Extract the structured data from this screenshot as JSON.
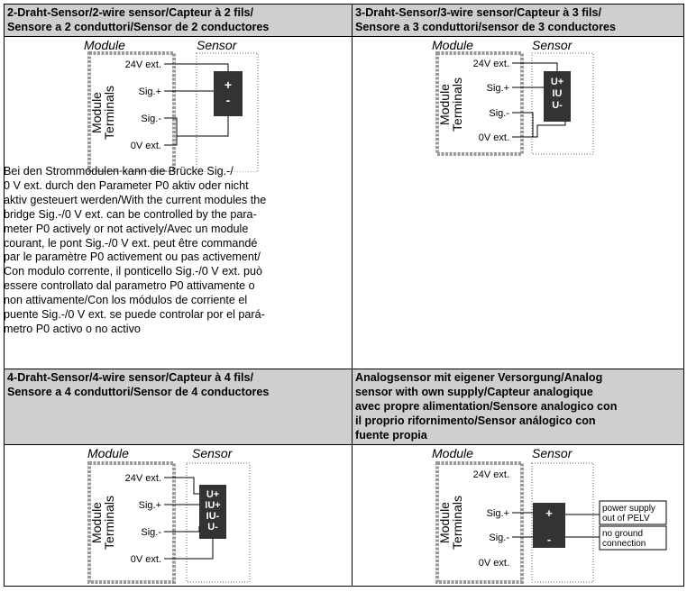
{
  "cells": {
    "two_wire": {
      "header_line1": "2-Draht-Sensor/2-wire sensor/Capteur à 2 fils/",
      "header_line2": "Sensore a 2 conduttori/Sensor de 2 conductores",
      "pins": [
        "+",
        "-"
      ]
    },
    "three_wire": {
      "header_line1": "3-Draht-Sensor/3-wire sensor/Capteur à 3 fils/",
      "header_line2": "Sensore a 3 conduttori/sensor de 3 conductores",
      "pins": [
        "U+",
        "IU",
        "U-"
      ]
    },
    "four_wire": {
      "header_line1": "4-Draht-Sensor/4-wire sensor/Capteur à 4 fils/",
      "header_line2": "Sensore a 4 conduttori/Sensor de 4 conductores",
      "pins": [
        "U+",
        "IU+",
        "IU-",
        "U-"
      ]
    },
    "own_supply": {
      "header_lines": [
        "Analogsensor mit eigener Versorgung/Analog",
        "sensor with own supply/Capteur analogique",
        "avec propre alimentation/Sensore analogico con",
        "il proprio rifornimento/Sensor análogico con",
        "fuente propia"
      ],
      "pins": [
        "+",
        "-"
      ],
      "note_power": [
        "power supply",
        "out of PELV"
      ],
      "note_ground": [
        "no ground",
        "connection"
      ]
    }
  },
  "diagram_labels": {
    "module": "Module",
    "sensor": "Sensor",
    "terminals_line1": "Module",
    "terminals_line2": "Terminals",
    "term_24v": "24V ext.",
    "term_sig_plus": "Sig.+",
    "term_sig_minus": "Sig.-",
    "term_0v": "0V ext."
  },
  "bridge_note_lines": [
    "Bei den Strommodulen kann die Brücke Sig.-/",
    "0 V ext. durch den Parameter P0 aktiv oder nicht",
    "aktiv gesteuert werden/With the current modules the",
    "bridge Sig.-/0 V ext. can be controlled by the para-",
    "meter P0 actively or not actively/Avec un module",
    "courant, le pont Sig.-/0 V ext. peut être commandé",
    "par le paramètre P0 activement ou pas activement/",
    "Con modulo corrente, il ponticello Sig.-/0 V ext. può",
    "essere controllato dal parametro P0 attivamente o",
    "non attivamente/Con los módulos de corriente el",
    "puente Sig.-/0 V ext. se puede controlar por el pará-",
    "metro P0 activo o no activo"
  ]
}
